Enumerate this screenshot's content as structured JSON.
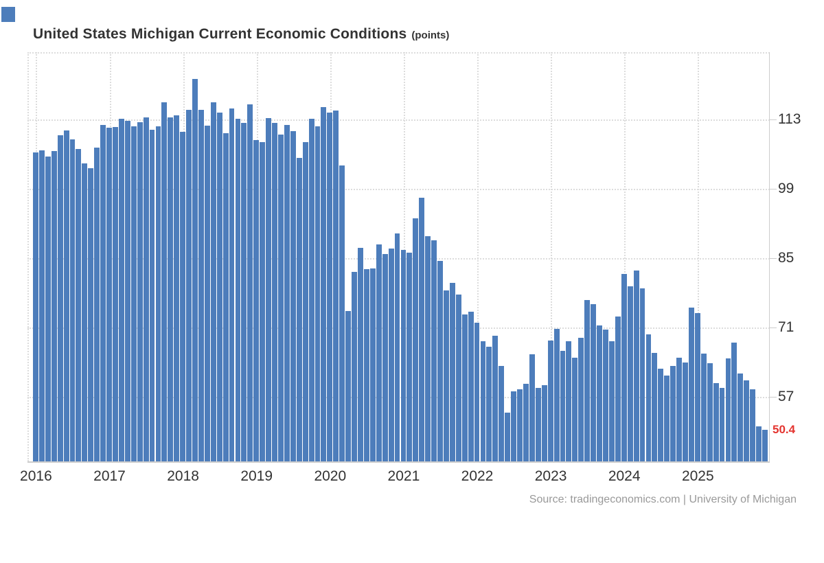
{
  "header": {
    "title": "United States Michigan Current Economic Conditions",
    "unit_label": "(points)"
  },
  "footer": {
    "source": "Source: tradingeconomics.com | University of Michigan"
  },
  "colors": {
    "bar": "#4d7dbb",
    "grid": "#dcdcdc",
    "axis_text": "#333333",
    "last_value_label": "#e4342f",
    "plot_border": "#cccccc",
    "source_text": "#999999"
  },
  "chart_data": {
    "type": "bar",
    "title": "United States Michigan Current Economic Conditions",
    "unit": "points",
    "frequency": "monthly",
    "start_month": "2016-01",
    "end_month": "2025-12",
    "values": [
      106.4,
      106.8,
      105.6,
      106.7,
      109.9,
      110.8,
      109.0,
      107.0,
      104.2,
      103.2,
      107.3,
      111.9,
      111.3,
      111.5,
      113.2,
      112.7,
      111.7,
      112.5,
      113.4,
      110.9,
      111.7,
      116.5,
      113.5,
      113.8,
      110.5,
      114.9,
      121.2,
      114.9,
      111.8,
      116.5,
      114.4,
      110.3,
      115.2,
      113.1,
      112.3,
      116.1,
      108.8,
      108.5,
      113.3,
      112.3,
      110.0,
      111.9,
      110.7,
      105.3,
      108.5,
      113.2,
      111.6,
      115.5,
      114.4,
      114.8,
      103.7,
      74.3,
      82.3,
      87.1,
      82.8,
      82.9,
      87.8,
      85.9,
      87.0,
      90.0,
      86.7,
      86.2,
      93.0,
      97.2,
      89.4,
      88.6,
      84.5,
      78.5,
      80.1,
      77.7,
      73.6,
      74.2,
      72.0,
      68.2,
      67.2,
      69.4,
      63.3,
      53.8,
      58.1,
      58.6,
      59.7,
      65.6,
      58.8,
      59.4,
      68.4,
      70.7,
      66.3,
      68.2,
      64.9,
      69.0,
      76.6,
      75.7,
      71.4,
      70.6,
      68.3,
      73.3,
      81.9,
      79.4,
      82.5,
      79.0,
      69.6,
      65.9,
      62.7,
      61.3,
      63.3,
      64.9,
      63.9,
      75.1,
      74.0,
      65.7,
      63.8,
      59.8,
      58.9,
      64.8,
      68.0,
      61.7,
      60.4,
      58.6,
      51.1,
      50.4
    ],
    "x_tick_labels": [
      "2016",
      "2017",
      "2018",
      "2019",
      "2020",
      "2021",
      "2022",
      "2023",
      "2024",
      "2025"
    ],
    "y_tick_labels": [
      "57",
      "71",
      "85",
      "99",
      "113"
    ],
    "y_tick_values": [
      57,
      71,
      85,
      99,
      113
    ],
    "y_axis_range": [
      44,
      126.6
    ],
    "last_value": "50.4",
    "grid": "dotted",
    "legend": "none",
    "bar_color": "#4d7dbb"
  }
}
